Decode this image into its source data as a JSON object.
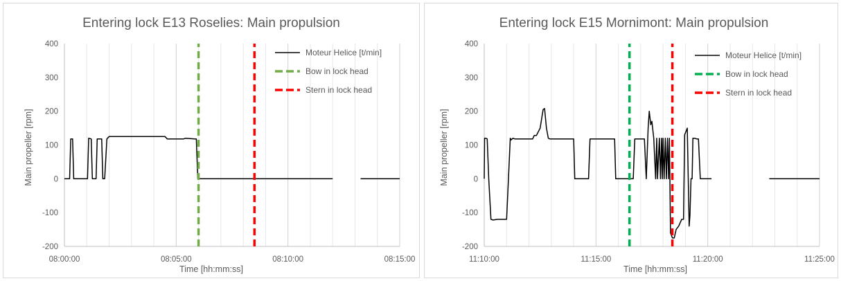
{
  "chart_data": [
    {
      "type": "line",
      "title": "Entering lock E13 Roselies: Main propulsion",
      "xlabel": "Time [hh:mm:ss]",
      "ylabel": "Main propeller [rpm]",
      "xlim": [
        "08:00:00",
        "08:15:00"
      ],
      "ylim": [
        -200,
        400
      ],
      "x_ticks": [
        "08:00:00",
        "08:05:00",
        "08:10:00",
        "08:15:00"
      ],
      "y_ticks": [
        400,
        300,
        200,
        100,
        0,
        -100,
        -200
      ],
      "grid": "vertical",
      "legend_position": "top-right",
      "series": [
        {
          "name": "Moteur Helice [t/min]",
          "color": "#000000",
          "style": "solid",
          "x": [
            "08:00:00",
            "08:00:14",
            "08:00:17",
            "08:00:22",
            "08:00:25",
            "08:01:02",
            "08:01:05",
            "08:01:12",
            "08:01:15",
            "08:01:25",
            "08:01:28",
            "08:01:40",
            "08:01:43",
            "08:01:48",
            "08:01:54",
            "08:02:00",
            "08:04:30",
            "08:04:36",
            "08:05:20",
            "08:05:25",
            "08:05:50",
            "08:05:54",
            "08:05:58",
            "08:12:00",
            null,
            "08:13:15",
            "08:15:00"
          ],
          "values": [
            0,
            0,
            118,
            118,
            0,
            0,
            120,
            118,
            0,
            0,
            118,
            118,
            0,
            0,
            118,
            125,
            125,
            118,
            118,
            120,
            118,
            118,
            0,
            0,
            null,
            0,
            0
          ]
        },
        {
          "name": "Bow in lock head",
          "color": "#70ad47",
          "style": "dashed",
          "x": [
            "08:06:00",
            "08:06:00"
          ],
          "values": [
            -200,
            400
          ]
        },
        {
          "name": "Stern in lock head",
          "color": "#ff0000",
          "style": "dashed",
          "x": [
            "08:08:30",
            "08:08:30"
          ],
          "values": [
            -200,
            400
          ]
        }
      ]
    },
    {
      "type": "line",
      "title": "Entering lock E15 Mornimont: Main propulsion",
      "xlabel": "Time [hh:mm:ss]",
      "ylabel": "Main propeller [rpm]",
      "xlim": [
        "11:10:00",
        "11:25:00"
      ],
      "ylim": [
        -200,
        400
      ],
      "x_ticks": [
        "11:10:00",
        "11:15:00",
        "11:20:00",
        "11:25:00"
      ],
      "y_ticks": [
        400,
        300,
        200,
        100,
        0,
        -100,
        -200
      ],
      "grid": "vertical",
      "legend_position": "top-right",
      "series": [
        {
          "name": "Moteur Helice [t/min]",
          "color": "#000000",
          "style": "solid",
          "x": [
            "11:10:00",
            "11:10:01",
            "11:10:05",
            "11:10:08",
            "11:10:12",
            "11:10:18",
            "11:10:24",
            "11:10:35",
            "11:11:00",
            "11:11:10",
            "11:11:12",
            "11:11:17",
            "11:11:22",
            "11:12:10",
            "11:12:14",
            "11:12:20",
            "11:12:30",
            "11:12:38",
            "11:12:42",
            "11:12:47",
            "11:12:52",
            "11:12:56",
            "11:13:00",
            "11:14:00",
            "11:14:03",
            "11:14:40",
            "11:14:44",
            "11:15:50",
            "11:15:53",
            "11:16:40",
            "11:16:44",
            "11:17:10",
            "11:17:15",
            "11:17:20",
            "11:17:23",
            "11:17:27",
            "11:17:30",
            "11:17:35",
            "11:17:40",
            "11:17:43",
            "11:17:45",
            "11:17:50",
            "11:17:53",
            "11:17:56",
            "11:17:58",
            "11:18:00",
            "11:18:03",
            "11:18:06",
            "11:18:09",
            "11:18:12",
            "11:18:15",
            "11:18:17",
            "11:18:20",
            "11:18:25",
            "11:18:30",
            "11:18:35",
            "11:18:42",
            "11:18:50",
            "11:18:55",
            "11:18:58",
            "11:19:05",
            "11:19:10",
            "11:19:12",
            "11:19:15",
            "11:19:18",
            "11:19:20",
            "11:19:25",
            "11:19:30",
            "11:19:35",
            "11:19:40",
            "11:19:45",
            "11:19:50",
            "11:19:58",
            "11:20:10",
            null,
            "11:22:45",
            "11:25:00"
          ],
          "values": [
            0,
            120,
            120,
            118,
            0,
            -120,
            -122,
            -120,
            -120,
            120,
            115,
            120,
            118,
            118,
            128,
            128,
            150,
            205,
            208,
            150,
            120,
            118,
            118,
            118,
            0,
            0,
            118,
            118,
            0,
            0,
            118,
            118,
            0,
            150,
            200,
            160,
            170,
            120,
            0,
            120,
            0,
            120,
            0,
            120,
            0,
            120,
            0,
            120,
            0,
            120,
            0,
            120,
            -160,
            -175,
            -175,
            -150,
            -140,
            -120,
            -120,
            130,
            150,
            -140,
            -110,
            0,
            0,
            120,
            120,
            118,
            118,
            0,
            0,
            0,
            0,
            0,
            null,
            0,
            0
          ]
        },
        {
          "name": "Bow in lock head",
          "color": "#00b050",
          "style": "dashed",
          "x": [
            "11:16:30",
            "11:16:30"
          ],
          "values": [
            -200,
            400
          ]
        },
        {
          "name": "Stern in lock head",
          "color": "#ff0000",
          "style": "dashed",
          "x": [
            "11:18:25",
            "11:18:25"
          ],
          "values": [
            -200,
            400
          ]
        }
      ]
    }
  ]
}
